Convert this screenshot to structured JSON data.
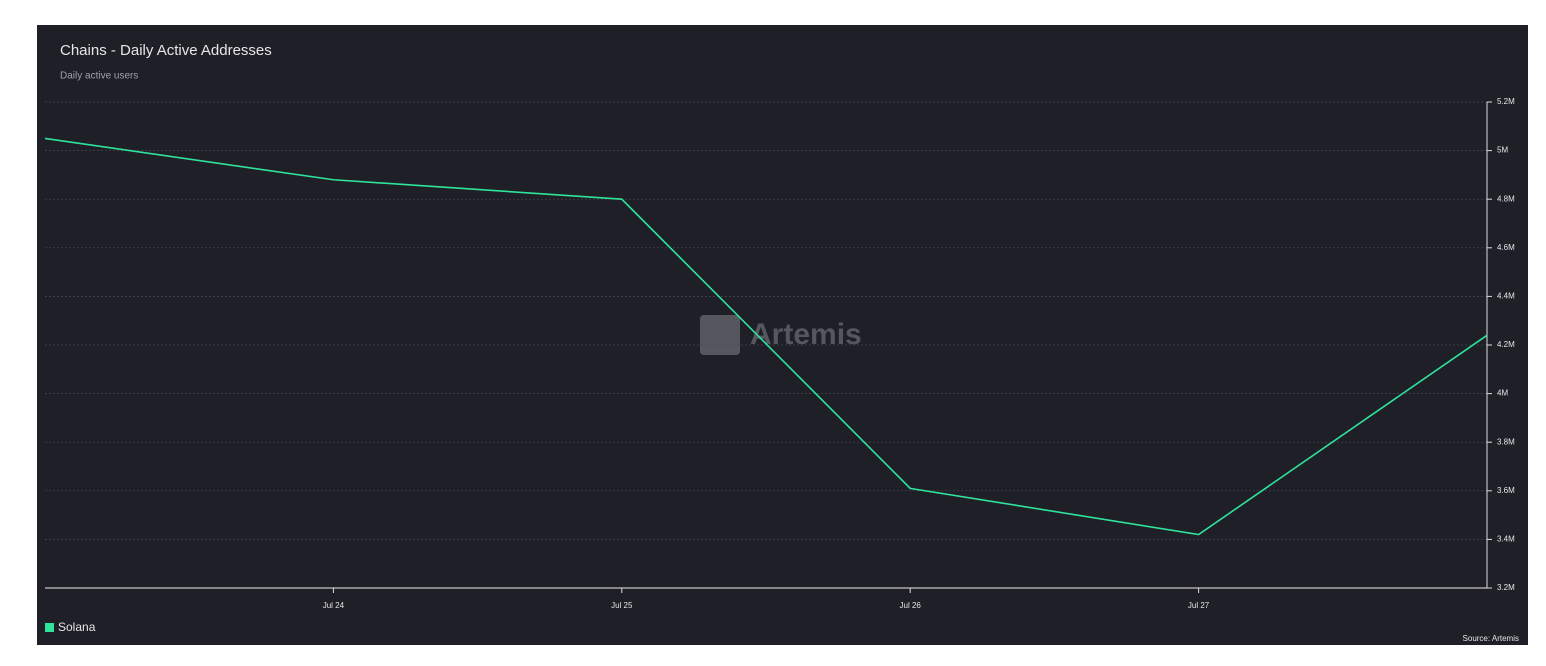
{
  "chart_data": {
    "type": "line",
    "title": "Chains - Daily Active Addresses",
    "subtitle": "Daily active users",
    "watermark": "Artemis",
    "source": "Source: Artemis",
    "categories": [
      null,
      "Jul 24",
      "Jul 25",
      "Jul 26",
      "Jul 27",
      null
    ],
    "series": [
      {
        "name": "Solana",
        "color": "#2fe39a",
        "values": [
          5050000,
          4880000,
          4800000,
          3610000,
          3420000,
          4240000
        ]
      }
    ],
    "ylim": [
      3200000,
      5200000
    ],
    "yticks": [
      {
        "value": 3200000,
        "label": "3.2M"
      },
      {
        "value": 3400000,
        "label": "3.4M"
      },
      {
        "value": 3600000,
        "label": "3.6M"
      },
      {
        "value": 3800000,
        "label": "3.8M"
      },
      {
        "value": 4000000,
        "label": "4M"
      },
      {
        "value": 4200000,
        "label": "4.2M"
      },
      {
        "value": 4400000,
        "label": "4.4M"
      },
      {
        "value": 4600000,
        "label": "4.6M"
      },
      {
        "value": 4800000,
        "label": "4.8M"
      },
      {
        "value": 5000000,
        "label": "5M"
      },
      {
        "value": 5200000,
        "label": "5.2M"
      }
    ],
    "grid": true,
    "legend": "bottom-left"
  }
}
